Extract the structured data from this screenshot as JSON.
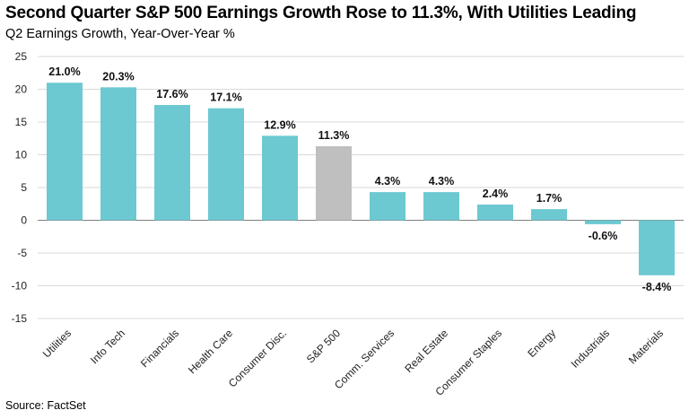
{
  "header": {
    "title": "Second Quarter S&P 500 Earnings Growth Rose to 11.3%, With Utilities Leading",
    "subtitle": "Q2 Earnings Growth, Year-Over-Year %"
  },
  "footer": {
    "source": "Source: FactSet"
  },
  "colors": {
    "sector": "#6CC9D1",
    "index": "#BFBFBF",
    "grid": "#D9D9D9",
    "axis": "#7F7F7F"
  },
  "chart_data": {
    "type": "bar",
    "title": "Second Quarter S&P 500 Earnings Growth Rose to 11.3%, With Utilities Leading",
    "ylabel": "Q2 Earnings Growth, Year-Over-Year %",
    "xlabel": "",
    "ylim": [
      -15,
      25
    ],
    "yticks": [
      25,
      20,
      15,
      10,
      5,
      0,
      -5,
      -10,
      -15
    ],
    "grid": true,
    "categories": [
      "Utilities",
      "Info Tech",
      "Financials",
      "Health Care",
      "Consumer Disc.",
      "S&P 500",
      "Comm. Services",
      "Real Estate",
      "Consumer Staples",
      "Energy",
      "Industrials",
      "Materials"
    ],
    "values": [
      21.0,
      20.3,
      17.6,
      17.1,
      12.9,
      11.3,
      4.3,
      4.3,
      2.4,
      1.7,
      -0.6,
      -8.4
    ],
    "labels": [
      "21.0%",
      "20.3%",
      "17.6%",
      "17.1%",
      "12.9%",
      "11.3%",
      "4.3%",
      "4.3%",
      "2.4%",
      "1.7%",
      "-0.6%",
      "-8.4%"
    ],
    "highlight": "S&P 500"
  }
}
